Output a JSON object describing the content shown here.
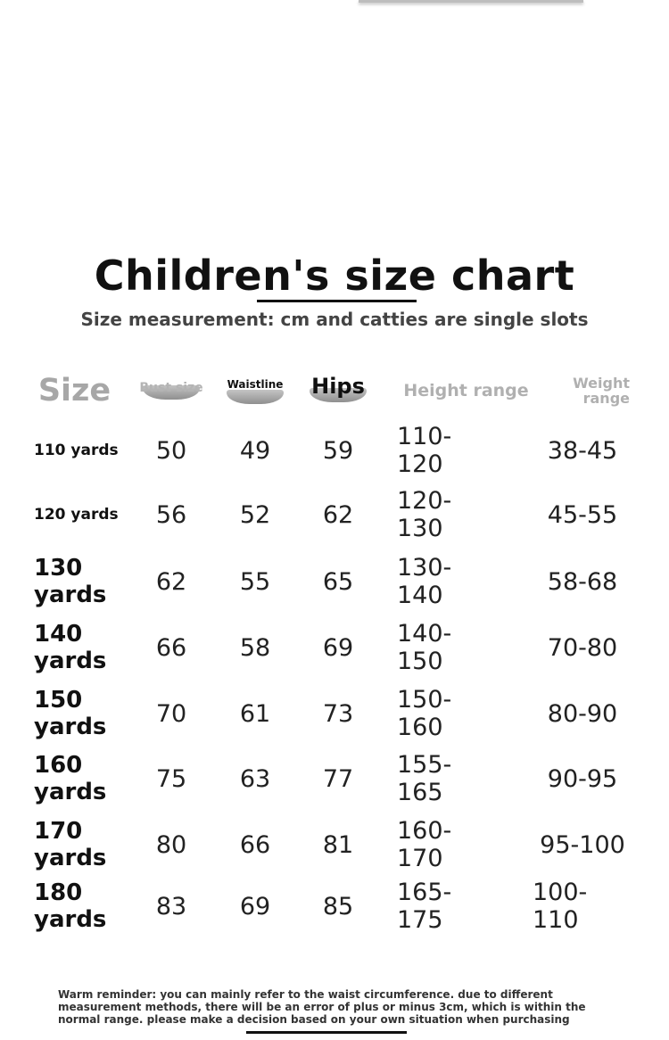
{
  "title": "Children's size chart",
  "subtitle": "Size measurement: cm and catties are single slots",
  "headers": {
    "size": "Size",
    "bust": "Bust size",
    "waist": "Waistline",
    "hips": "Hips",
    "height": "Height range",
    "weight": "Weight range"
  },
  "rows": [
    {
      "size": "110 yards",
      "bust": "50",
      "waist": "49",
      "hips": "59",
      "height": "110-120",
      "weight": "38-45"
    },
    {
      "size": "120 yards",
      "bust": "56",
      "waist": "52",
      "hips": "62",
      "height": "120-130",
      "weight": "45-55"
    },
    {
      "size": "130 yards",
      "bust": "62",
      "waist": "55",
      "hips": "65",
      "height": "130-140",
      "weight": "58-68"
    },
    {
      "size": "140 yards",
      "bust": "66",
      "waist": "58",
      "hips": "69",
      "height": "140-150",
      "weight": "70-80"
    },
    {
      "size": "150 yards",
      "bust": "70",
      "waist": "61",
      "hips": "73",
      "height": "150-160",
      "weight": "80-90"
    },
    {
      "size": "160 yards",
      "bust": "75",
      "waist": "63",
      "hips": "77",
      "height": "155-165",
      "weight": "90-95"
    },
    {
      "size": "170 yards",
      "bust": "80",
      "waist": "66",
      "hips": "81",
      "height": "160-170",
      "weight": "95-100"
    },
    {
      "size": "180 yards",
      "bust": "83",
      "waist": "69",
      "hips": "85",
      "height": "165-175",
      "weight": "100-110"
    }
  ],
  "note": "Warm reminder: you can mainly refer to the waist circumference. due to different measurement methods, there will be an error of plus or minus 3cm, which is within the normal range. please make a decision based on your own situation when purchasing"
}
